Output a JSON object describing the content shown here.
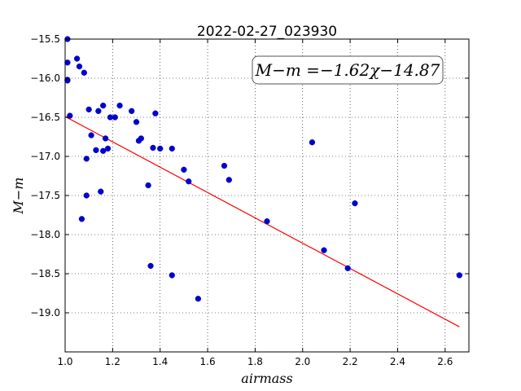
{
  "chart_data": {
    "type": "scatter",
    "title": "2022-02-27_023930",
    "xlabel": "airmass",
    "ylabel": "M−m",
    "xlim": [
      1.0,
      2.7
    ],
    "ylim": [
      -15.5,
      -19.5
    ],
    "y_inverted": true,
    "grid": true,
    "grid_style": "dotted",
    "xticks": [
      "1.0",
      "1.2",
      "1.4",
      "1.6",
      "1.8",
      "2.0",
      "2.2",
      "2.4",
      "2.6"
    ],
    "yticks": [
      "−15.5",
      "−16.0",
      "−16.5",
      "−17.0",
      "−17.5",
      "−18.0",
      "−18.5",
      "−19.0"
    ],
    "annotation": "M−m =−1.62χ−14.87",
    "fit": {
      "slope": -1.62,
      "intercept": -14.87,
      "x_range": [
        1.0,
        2.66
      ],
      "color": "#ff0000"
    },
    "series": [
      {
        "marker_color": "#0000cc",
        "points": [
          [
            1.01,
            -15.5
          ],
          [
            1.01,
            -15.8
          ],
          [
            1.01,
            -16.02
          ],
          [
            1.01,
            -16.03
          ],
          [
            1.02,
            -16.48
          ],
          [
            1.05,
            -15.75
          ],
          [
            1.06,
            -15.85
          ],
          [
            1.08,
            -15.93
          ],
          [
            1.07,
            -17.8
          ],
          [
            1.09,
            -17.03
          ],
          [
            1.09,
            -17.5
          ],
          [
            1.1,
            -16.4
          ],
          [
            1.11,
            -16.73
          ],
          [
            1.13,
            -16.92
          ],
          [
            1.14,
            -16.42
          ],
          [
            1.15,
            -17.45
          ],
          [
            1.16,
            -16.35
          ],
          [
            1.16,
            -16.93
          ],
          [
            1.17,
            -16.77
          ],
          [
            1.18,
            -16.9
          ],
          [
            1.19,
            -16.5
          ],
          [
            1.21,
            -16.5
          ],
          [
            1.23,
            -16.35
          ],
          [
            1.28,
            -16.42
          ],
          [
            1.3,
            -16.56
          ],
          [
            1.31,
            -16.8
          ],
          [
            1.32,
            -16.77
          ],
          [
            1.35,
            -17.37
          ],
          [
            1.36,
            -18.4
          ],
          [
            1.37,
            -16.89
          ],
          [
            1.38,
            -16.45
          ],
          [
            1.4,
            -16.9
          ],
          [
            1.45,
            -18.52
          ],
          [
            1.45,
            -16.9
          ],
          [
            1.5,
            -17.17
          ],
          [
            1.52,
            -17.32
          ],
          [
            1.56,
            -18.82
          ],
          [
            1.67,
            -17.12
          ],
          [
            1.69,
            -17.3
          ],
          [
            1.85,
            -17.83
          ],
          [
            2.04,
            -16.82
          ],
          [
            2.09,
            -18.2
          ],
          [
            2.19,
            -18.43
          ],
          [
            2.22,
            -17.6
          ],
          [
            2.66,
            -18.52
          ]
        ]
      }
    ]
  }
}
